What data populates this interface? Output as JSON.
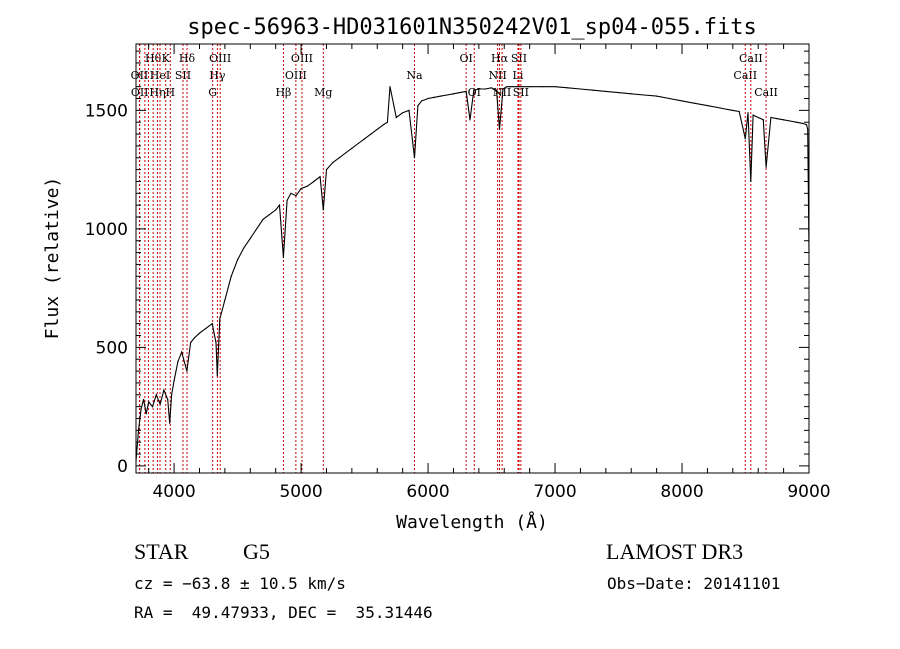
{
  "chart_data": {
    "type": "line",
    "title": "spec-56963-HD031601N350242V01_sp04-055.fits",
    "xlabel": "Wavelength (Å)",
    "ylabel": "Flux (relative)",
    "xlim": [
      3700,
      9000
    ],
    "ylim": [
      -30,
      1780
    ],
    "xticks": [
      4000,
      5000,
      6000,
      7000,
      8000,
      9000
    ],
    "xtick_labels": [
      "4000",
      "5000",
      "6000",
      "7000",
      "8000",
      "9000"
    ],
    "yticks": [
      0,
      500,
      1000,
      1500
    ],
    "ytick_labels": [
      "0",
      "500",
      "1000",
      "1500"
    ],
    "grid": false,
    "line_color": "#000000",
    "marker_color": "#cc0000",
    "series": [
      {
        "x": [
          3700,
          3720,
          3740,
          3760,
          3780,
          3800,
          3830,
          3860,
          3890,
          3920,
          3950,
          3965,
          3980,
          4000,
          4030,
          4060,
          4101,
          4130,
          4160,
          4200,
          4250,
          4300,
          4330,
          4340,
          4360,
          4400,
          4450,
          4500,
          4550,
          4600,
          4650,
          4700,
          4750,
          4800,
          4830,
          4861,
          4890,
          4920,
          4960,
          5000,
          5050,
          5100,
          5150,
          5175,
          5200,
          5250,
          5300,
          5350,
          5400,
          5450,
          5500,
          5550,
          5600,
          5650,
          5680,
          5700,
          5750,
          5800,
          5850,
          5893,
          5920,
          5950,
          6000,
          6050,
          6100,
          6150,
          6200,
          6250,
          6300,
          6330,
          6360,
          6400,
          6450,
          6500,
          6540,
          6563,
          6590,
          6620,
          6650,
          6700,
          6800,
          6900,
          7000,
          7100,
          7200,
          7300,
          7400,
          7500,
          7600,
          7700,
          7800,
          7900,
          8000,
          8100,
          8200,
          8300,
          8400,
          8450,
          8498,
          8520,
          8542,
          8560,
          8600,
          8640,
          8662,
          8700,
          8750,
          8800,
          8850,
          8900,
          8950,
          8980,
          8990,
          9000
        ],
        "y": [
          20,
          150,
          240,
          280,
          220,
          270,
          250,
          300,
          260,
          320,
          280,
          180,
          300,
          360,
          440,
          480,
          400,
          520,
          540,
          560,
          580,
          600,
          520,
          380,
          620,
          700,
          800,
          870,
          920,
          960,
          1000,
          1040,
          1060,
          1080,
          1100,
          880,
          1120,
          1150,
          1140,
          1170,
          1180,
          1200,
          1220,
          1080,
          1250,
          1280,
          1300,
          1320,
          1340,
          1360,
          1380,
          1400,
          1420,
          1440,
          1450,
          1600,
          1470,
          1490,
          1500,
          1300,
          1520,
          1540,
          1550,
          1555,
          1560,
          1565,
          1570,
          1575,
          1580,
          1460,
          1585,
          1590,
          1590,
          1595,
          1580,
          1420,
          1590,
          1600,
          1600,
          1600,
          1600,
          1600,
          1600,
          1595,
          1590,
          1585,
          1580,
          1575,
          1570,
          1565,
          1560,
          1550,
          1540,
          1530,
          1520,
          1510,
          1500,
          1495,
          1380,
          1490,
          1200,
          1480,
          1470,
          1460,
          1260,
          1470,
          1465,
          1460,
          1455,
          1450,
          1445,
          1440,
          1420,
          900
        ]
      }
    ],
    "line_markers": [
      {
        "x": 3727,
        "label": "OII",
        "row": 1
      },
      {
        "x": 3729,
        "label": "OII",
        "row": 2
      },
      {
        "x": 3770,
        "label": "",
        "row": 0
      },
      {
        "x": 3798,
        "label": "",
        "row": 0
      },
      {
        "x": 3835,
        "label": "Hθ",
        "row": 0
      },
      {
        "x": 3869,
        "label": "Hη",
        "row": 2
      },
      {
        "x": 3889,
        "label": "HeI",
        "row": 1
      },
      {
        "x": 3934,
        "label": "K",
        "row": 0
      },
      {
        "x": 3970,
        "label": "H",
        "row": 2
      },
      {
        "x": 4070,
        "label": "SII",
        "row": 1
      },
      {
        "x": 4102,
        "label": "Hδ",
        "row": 0
      },
      {
        "x": 4304,
        "label": "G",
        "row": 2
      },
      {
        "x": 4341,
        "label": "Hγ",
        "row": 1
      },
      {
        "x": 4363,
        "label": "OIII",
        "row": 0
      },
      {
        "x": 4861,
        "label": "Hβ",
        "row": 2
      },
      {
        "x": 4959,
        "label": "OIII",
        "row": 1
      },
      {
        "x": 5007,
        "label": "OIII",
        "row": 0
      },
      {
        "x": 5175,
        "label": "Mg",
        "row": 2
      },
      {
        "x": 5893,
        "label": "Na",
        "row": 1
      },
      {
        "x": 6300,
        "label": "OI",
        "row": 0
      },
      {
        "x": 6364,
        "label": "OI",
        "row": 2
      },
      {
        "x": 6548,
        "label": "NII",
        "row": 1
      },
      {
        "x": 6563,
        "label": "Hα",
        "row": 0
      },
      {
        "x": 6583,
        "label": "NII",
        "row": 2
      },
      {
        "x": 6708,
        "label": "Li",
        "row": 1
      },
      {
        "x": 6716,
        "label": "SII",
        "row": 0
      },
      {
        "x": 6731,
        "label": "SII",
        "row": 2
      },
      {
        "x": 8498,
        "label": "CaII",
        "row": 1
      },
      {
        "x": 8542,
        "label": "CaII",
        "row": 0
      },
      {
        "x": 8662,
        "label": "CaII",
        "row": 2
      }
    ]
  },
  "info": {
    "object_class": "STAR",
    "subclass": "G5",
    "survey": "LAMOST DR3",
    "redshift": "cz = −63.8 ± 10.5 km/s",
    "obs_date": "Obs−Date: 20141101",
    "coords": "RA =  49.47933, DEC =  35.31446"
  }
}
